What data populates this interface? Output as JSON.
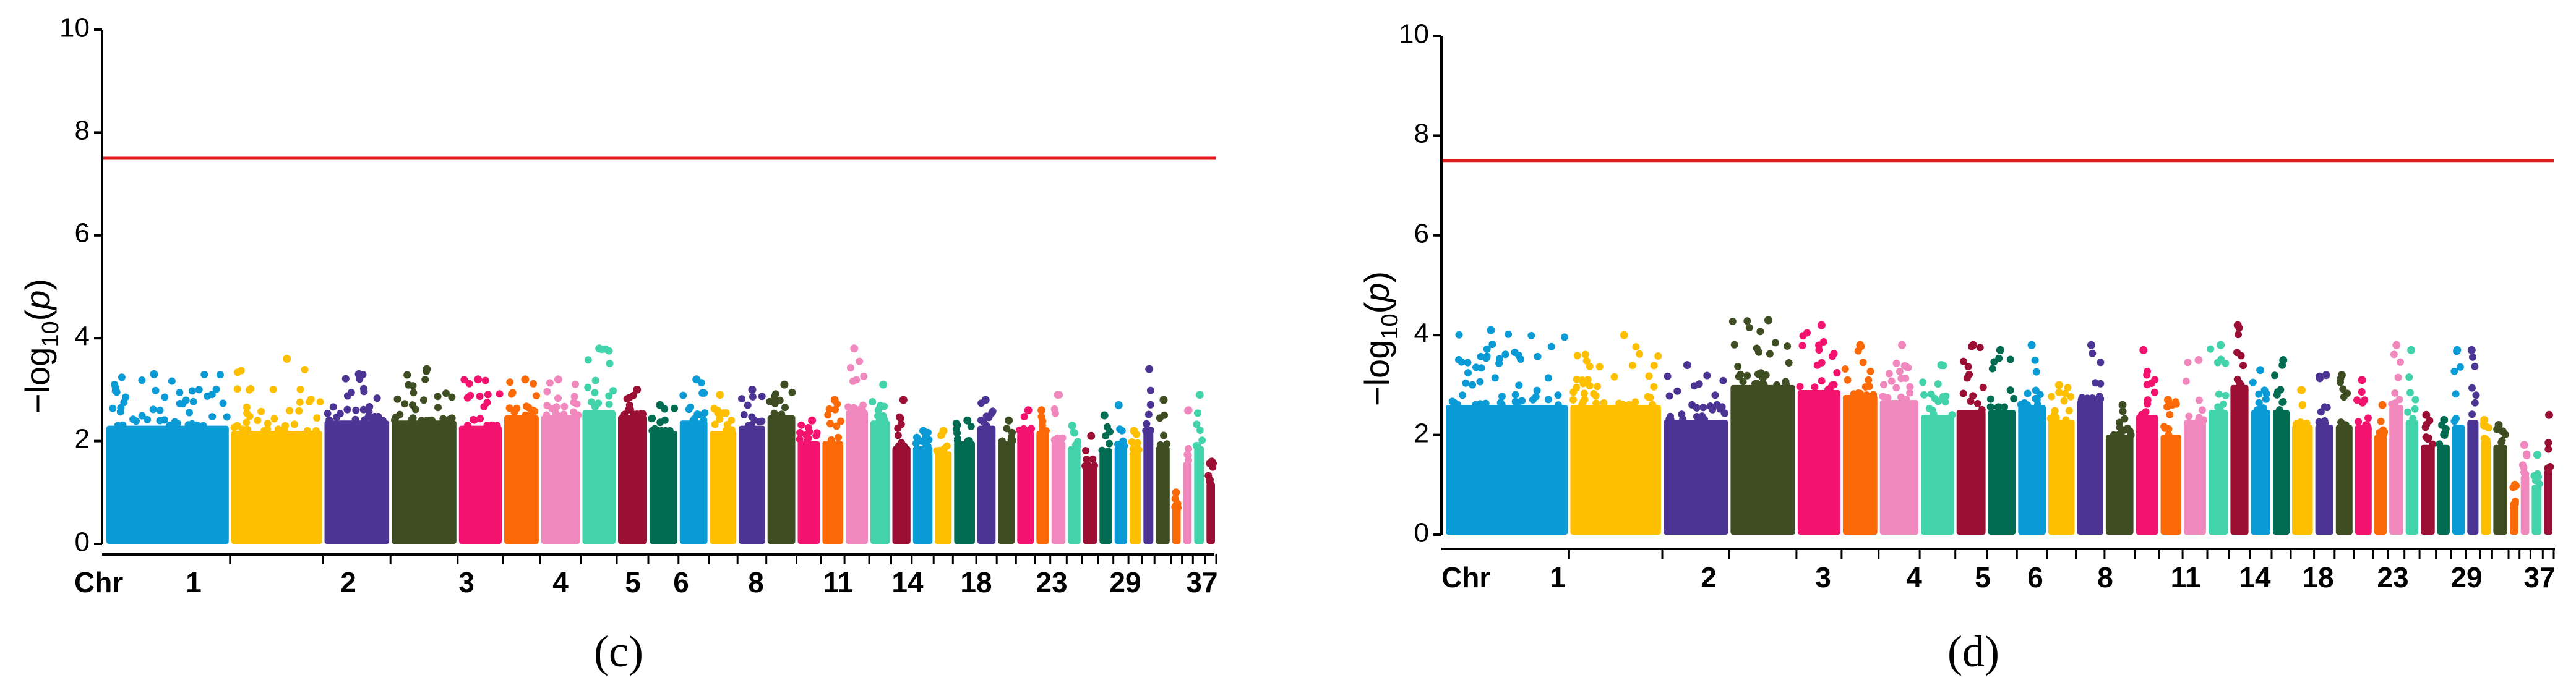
{
  "chart_data": [
    {
      "type": "scatter",
      "subtype": "manhattan",
      "panel_label": "(c)",
      "title": "",
      "xlabel": "Chr",
      "ylabel_parts": {
        "prefix": "−log",
        "subscript": "10",
        "open": "(",
        "var": "p",
        "close": ")"
      },
      "ylim": [
        0,
        10
      ],
      "yticks": [
        "0",
        "2",
        "4",
        "6",
        "8",
        "10"
      ],
      "threshold": 7.5,
      "threshold_color": "#e31a1c",
      "x_tick_labels": [
        "1",
        "2",
        "3",
        "4",
        "5",
        "6",
        "8",
        "11",
        "14",
        "18",
        "23",
        "29",
        "37"
      ],
      "chromosomes": [
        {
          "chr": "1",
          "color": "#0a9ad6",
          "base": 2.3,
          "peak": 3.3
        },
        {
          "chr": "2",
          "color": "#fdbf00",
          "base": 2.2,
          "peak": 3.6
        },
        {
          "chr": "3",
          "color": "#4b3494",
          "base": 2.4,
          "peak": 3.3
        },
        {
          "chr": "4",
          "color": "#3e4e22",
          "base": 2.4,
          "peak": 3.4
        },
        {
          "chr": "5",
          "color": "#f3126e",
          "base": 2.3,
          "peak": 3.2
        },
        {
          "chr": "6",
          "color": "#fb6a07",
          "base": 2.5,
          "peak": 3.2
        },
        {
          "chr": "7",
          "color": "#f088bd",
          "base": 2.5,
          "peak": 3.2
        },
        {
          "chr": "8",
          "color": "#42d3ab",
          "base": 2.6,
          "peak": 3.8
        },
        {
          "chr": "9",
          "color": "#9a0f33",
          "base": 2.5,
          "peak": 3.0
        },
        {
          "chr": "10",
          "color": "#016c51",
          "base": 2.2,
          "peak": 2.7
        },
        {
          "chr": "11",
          "color": "#0a9ad6",
          "base": 2.4,
          "peak": 3.2
        },
        {
          "chr": "12",
          "color": "#fdbf00",
          "base": 2.2,
          "peak": 2.9
        },
        {
          "chr": "13",
          "color": "#4b3494",
          "base": 2.3,
          "peak": 3.0
        },
        {
          "chr": "14",
          "color": "#3e4e22",
          "base": 2.5,
          "peak": 3.1
        },
        {
          "chr": "15",
          "color": "#f3126e",
          "base": 2.0,
          "peak": 2.4
        },
        {
          "chr": "16",
          "color": "#fb6a07",
          "base": 2.0,
          "peak": 2.8
        },
        {
          "chr": "17",
          "color": "#f088bd",
          "base": 2.6,
          "peak": 3.8
        },
        {
          "chr": "18",
          "color": "#42d3ab",
          "base": 2.4,
          "peak": 3.1
        },
        {
          "chr": "19",
          "color": "#9a0f33",
          "base": 1.9,
          "peak": 2.8
        },
        {
          "chr": "20",
          "color": "#0a9ad6",
          "base": 1.9,
          "peak": 2.2
        },
        {
          "chr": "21",
          "color": "#fdbf00",
          "base": 1.8,
          "peak": 2.2
        },
        {
          "chr": "22",
          "color": "#016c51",
          "base": 2.0,
          "peak": 2.4
        },
        {
          "chr": "23",
          "color": "#4b3494",
          "base": 2.3,
          "peak": 2.8
        },
        {
          "chr": "24",
          "color": "#3e4e22",
          "base": 2.0,
          "peak": 2.4
        },
        {
          "chr": "25",
          "color": "#f3126e",
          "base": 2.2,
          "peak": 2.6
        },
        {
          "chr": "26",
          "color": "#fb6a07",
          "base": 2.2,
          "peak": 2.6
        },
        {
          "chr": "27",
          "color": "#f088bd",
          "base": 2.0,
          "peak": 2.9
        },
        {
          "chr": "28",
          "color": "#42d3ab",
          "base": 1.9,
          "peak": 2.3
        },
        {
          "chr": "29",
          "color": "#9a0f33",
          "base": 1.5,
          "peak": 2.1
        },
        {
          "chr": "30",
          "color": "#016c51",
          "base": 1.8,
          "peak": 2.5
        },
        {
          "chr": "31",
          "color": "#0a9ad6",
          "base": 1.9,
          "peak": 2.7
        },
        {
          "chr": "32",
          "color": "#fdbf00",
          "base": 1.8,
          "peak": 2.2
        },
        {
          "chr": "33",
          "color": "#4b3494",
          "base": 2.2,
          "peak": 3.4
        },
        {
          "chr": "34",
          "color": "#3e4e22",
          "base": 1.9,
          "peak": 2.8
        },
        {
          "chr": "35",
          "color": "#fb6a07",
          "base": 0.7,
          "peak": 1.0
        },
        {
          "chr": "36",
          "color": "#f088bd",
          "base": 1.6,
          "peak": 2.6
        },
        {
          "chr": "37",
          "color": "#42d3ab",
          "base": 1.9,
          "peak": 2.9
        },
        {
          "chr": "38",
          "color": "#9a0f33",
          "base": 1.2,
          "peak": 1.6
        }
      ]
    },
    {
      "type": "scatter",
      "subtype": "manhattan",
      "panel_label": "(d)",
      "title": "",
      "xlabel": "Chr",
      "ylabel_parts": {
        "prefix": "−log",
        "subscript": "10",
        "open": "(",
        "var": "p",
        "close": ")"
      },
      "ylim": [
        0,
        10
      ],
      "yticks": [
        "0",
        "2",
        "4",
        "6",
        "8",
        "10"
      ],
      "threshold": 7.5,
      "threshold_color": "#e31a1c",
      "x_tick_labels": [
        "1",
        "2",
        "3",
        "4",
        "5",
        "6",
        "8",
        "11",
        "14",
        "18",
        "23",
        "29",
        "37"
      ],
      "chromosomes": [
        {
          "chr": "1",
          "color": "#0a9ad6",
          "base": 2.6,
          "peak": 4.1
        },
        {
          "chr": "2",
          "color": "#fdbf00",
          "base": 2.6,
          "peak": 4.0
        },
        {
          "chr": "3",
          "color": "#4b3494",
          "base": 2.3,
          "peak": 3.4
        },
        {
          "chr": "4",
          "color": "#3e4e22",
          "base": 3.0,
          "peak": 4.3
        },
        {
          "chr": "5",
          "color": "#f3126e",
          "base": 2.9,
          "peak": 4.2
        },
        {
          "chr": "6",
          "color": "#fb6a07",
          "base": 2.8,
          "peak": 3.8
        },
        {
          "chr": "7",
          "color": "#f088bd",
          "base": 2.7,
          "peak": 3.8
        },
        {
          "chr": "8",
          "color": "#42d3ab",
          "base": 2.4,
          "peak": 3.4
        },
        {
          "chr": "9",
          "color": "#9a0f33",
          "base": 2.5,
          "peak": 3.8
        },
        {
          "chr": "10",
          "color": "#016c51",
          "base": 2.5,
          "peak": 3.7
        },
        {
          "chr": "11",
          "color": "#0a9ad6",
          "base": 2.6,
          "peak": 3.8
        },
        {
          "chr": "12",
          "color": "#fdbf00",
          "base": 2.3,
          "peak": 3.0
        },
        {
          "chr": "13",
          "color": "#4b3494",
          "base": 2.7,
          "peak": 3.8
        },
        {
          "chr": "14",
          "color": "#3e4e22",
          "base": 2.0,
          "peak": 2.6
        },
        {
          "chr": "15",
          "color": "#f3126e",
          "base": 2.4,
          "peak": 3.7
        },
        {
          "chr": "16",
          "color": "#fb6a07",
          "base": 2.0,
          "peak": 2.7
        },
        {
          "chr": "17",
          "color": "#f088bd",
          "base": 2.3,
          "peak": 3.5
        },
        {
          "chr": "18",
          "color": "#42d3ab",
          "base": 2.5,
          "peak": 3.8
        },
        {
          "chr": "19",
          "color": "#9a0f33",
          "base": 3.0,
          "peak": 4.2
        },
        {
          "chr": "20",
          "color": "#0a9ad6",
          "base": 2.5,
          "peak": 3.3
        },
        {
          "chr": "21",
          "color": "#016c51",
          "base": 2.5,
          "peak": 3.5
        },
        {
          "chr": "22",
          "color": "#fdbf00",
          "base": 2.2,
          "peak": 2.9
        },
        {
          "chr": "23",
          "color": "#4b3494",
          "base": 2.2,
          "peak": 3.2
        },
        {
          "chr": "24",
          "color": "#3e4e22",
          "base": 2.2,
          "peak": 3.2
        },
        {
          "chr": "25",
          "color": "#f3126e",
          "base": 2.2,
          "peak": 3.1
        },
        {
          "chr": "26",
          "color": "#fb6a07",
          "base": 2.0,
          "peak": 2.6
        },
        {
          "chr": "27",
          "color": "#f088bd",
          "base": 2.6,
          "peak": 3.8
        },
        {
          "chr": "28",
          "color": "#42d3ab",
          "base": 2.3,
          "peak": 3.7
        },
        {
          "chr": "29",
          "color": "#9a0f33",
          "base": 1.8,
          "peak": 2.4
        },
        {
          "chr": "30",
          "color": "#016c51",
          "base": 1.8,
          "peak": 2.3
        },
        {
          "chr": "31",
          "color": "#0a9ad6",
          "base": 2.2,
          "peak": 3.7
        },
        {
          "chr": "32",
          "color": "#4b3494",
          "base": 2.3,
          "peak": 3.7
        },
        {
          "chr": "33",
          "color": "#fdbf00",
          "base": 1.9,
          "peak": 2.3
        },
        {
          "chr": "34",
          "color": "#3e4e22",
          "base": 1.8,
          "peak": 2.2
        },
        {
          "chr": "35",
          "color": "#fb6a07",
          "base": 0.6,
          "peak": 1.0
        },
        {
          "chr": "36",
          "color": "#f088bd",
          "base": 1.2,
          "peak": 1.8
        },
        {
          "chr": "37",
          "color": "#42d3ab",
          "base": 1.0,
          "peak": 1.6
        },
        {
          "chr": "38",
          "color": "#9a0f33",
          "base": 1.3,
          "peak": 2.4
        }
      ]
    }
  ]
}
